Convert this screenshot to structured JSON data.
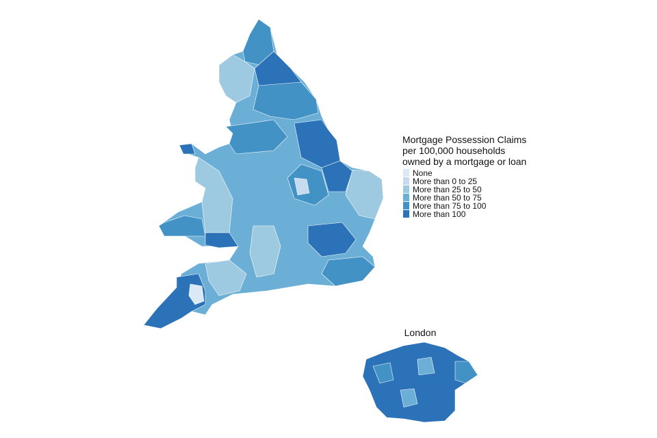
{
  "legend": {
    "title": [
      "Mortgage Possession Claims",
      "per 100,000 households",
      "owned by a mortgage or loan"
    ],
    "items": [
      {
        "label": "None",
        "color": "#dbe9f6"
      },
      {
        "label": "More than 0 to 25",
        "color": "#c6dbef"
      },
      {
        "label": "More than 25 to 50",
        "color": "#9ecae1"
      },
      {
        "label": "More than 50 to 75",
        "color": "#6baed6"
      },
      {
        "label": "More than 75 to 100",
        "color": "#4292c6"
      },
      {
        "label": "More than 100",
        "color": "#2b72b8"
      }
    ]
  },
  "inset": {
    "title": "London"
  }
}
